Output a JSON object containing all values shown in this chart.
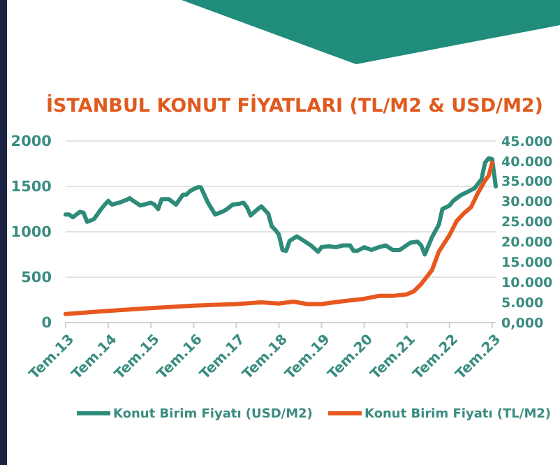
{
  "chart_data": {
    "type": "line",
    "title": "İSTANBUL KONUT FİYATLARI (TL/M2 & USD/M2)",
    "xlim": [
      "2013-07",
      "2023-08"
    ],
    "xticks": [
      {
        "value": "2013-07",
        "label": "Tem.13"
      },
      {
        "value": "2014-07",
        "label": "Tem.14"
      },
      {
        "value": "2015-07",
        "label": "Tem.15"
      },
      {
        "value": "2016-07",
        "label": "Tem.16"
      },
      {
        "value": "2017-07",
        "label": "Tem.17"
      },
      {
        "value": "2018-07",
        "label": "Tem.18"
      },
      {
        "value": "2019-07",
        "label": "Tem.19"
      },
      {
        "value": "2020-07",
        "label": "Tem.20"
      },
      {
        "value": "2021-07",
        "label": "Tem.21"
      },
      {
        "value": "2022-07",
        "label": "Tem.22"
      },
      {
        "value": "2023-07",
        "label": "Tem.23"
      }
    ],
    "ylim": [
      0,
      2000
    ],
    "yticks": [
      0,
      500,
      1000,
      1500,
      2000
    ],
    "y2lim": [
      0,
      45000
    ],
    "y2ticks": [
      {
        "value": 0,
        "label": "0,000"
      },
      {
        "value": 5000,
        "label": "5.000"
      },
      {
        "value": 10000,
        "label": "10.000"
      },
      {
        "value": 15000,
        "label": "15.000"
      },
      {
        "value": 20000,
        "label": "20.000"
      },
      {
        "value": 25000,
        "label": "25.000"
      },
      {
        "value": 30000,
        "label": "30.000"
      },
      {
        "value": 35000,
        "label": "35.000"
      },
      {
        "value": 40000,
        "label": "40.000"
      },
      {
        "value": 45000,
        "label": "45.000"
      }
    ],
    "grid": "y",
    "legend": "bottom",
    "marker": "none",
    "line_style": "solid",
    "series": [
      {
        "name": "Konut Birim Fiyatı (USD/M2)",
        "color": "#2e8b7a",
        "x": [
          "2013-07",
          "2013-08",
          "2013-09",
          "2013-11",
          "2013-12",
          "2014-01",
          "2014-03",
          "2014-05",
          "2014-06",
          "2014-07",
          "2014-08",
          "2014-10",
          "2014-12",
          "2015-01",
          "2015-02",
          "2015-04",
          "2015-05",
          "2015-07",
          "2015-08",
          "2015-09",
          "2015-10",
          "2015-12",
          "2016-02",
          "2016-04",
          "2016-05",
          "2016-06",
          "2016-08",
          "2016-09",
          "2016-11",
          "2017-01",
          "2017-03",
          "2017-04",
          "2017-06",
          "2017-08",
          "2017-09",
          "2017-10",
          "2017-11",
          "2018-01",
          "2018-02",
          "2018-04",
          "2018-05",
          "2018-06",
          "2018-07",
          "2018-08",
          "2018-09",
          "2018-10",
          "2018-12",
          "2019-02",
          "2019-04",
          "2019-06",
          "2019-07",
          "2019-09",
          "2019-11",
          "2020-01",
          "2020-03",
          "2020-04",
          "2020-05",
          "2020-07",
          "2020-09",
          "2020-11",
          "2021-01",
          "2021-03",
          "2021-05",
          "2021-08",
          "2021-10",
          "2021-11",
          "2021-12",
          "2022-02",
          "2022-04",
          "2022-05",
          "2022-07",
          "2022-08",
          "2022-10",
          "2022-12",
          "2023-02",
          "2023-04",
          "2023-05",
          "2023-06",
          "2023-07",
          "2023-08"
        ],
        "values": [
          1190,
          1190,
          1160,
          1220,
          1210,
          1110,
          1140,
          1250,
          1300,
          1340,
          1300,
          1320,
          1350,
          1370,
          1340,
          1290,
          1300,
          1320,
          1300,
          1250,
          1360,
          1360,
          1300,
          1410,
          1410,
          1450,
          1490,
          1490,
          1320,
          1190,
          1220,
          1240,
          1300,
          1310,
          1320,
          1270,
          1180,
          1250,
          1280,
          1200,
          1060,
          1020,
          970,
          800,
          790,
          900,
          950,
          900,
          850,
          780,
          830,
          840,
          830,
          850,
          850,
          790,
          790,
          830,
          800,
          830,
          850,
          800,
          800,
          880,
          890,
          850,
          750,
          940,
          1080,
          1250,
          1290,
          1340,
          1400,
          1440,
          1480,
          1580,
          1760,
          1810,
          1800,
          1500
        ]
      },
      {
        "name": "Konut Birim Fiyatı (TL/M2)",
        "color": "#e8571e",
        "axis": "y2",
        "x": [
          "2013-07",
          "2014-07",
          "2015-07",
          "2016-07",
          "2017-07",
          "2018-02",
          "2018-07",
          "2018-11",
          "2019-03",
          "2019-07",
          "2019-12",
          "2020-07",
          "2020-11",
          "2021-03",
          "2021-07",
          "2021-09",
          "2021-11",
          "2022-02",
          "2022-04",
          "2022-07",
          "2022-09",
          "2022-11",
          "2023-01",
          "2023-03",
          "2023-05",
          "2023-06",
          "2023-07"
        ],
        "values": [
          2100,
          2900,
          3600,
          4200,
          4600,
          5000,
          4700,
          5200,
          4600,
          4600,
          5200,
          5900,
          6600,
          6600,
          7000,
          7800,
          9600,
          13000,
          17600,
          21700,
          25200,
          27100,
          28600,
          32100,
          35200,
          36400,
          39600
        ]
      }
    ]
  }
}
